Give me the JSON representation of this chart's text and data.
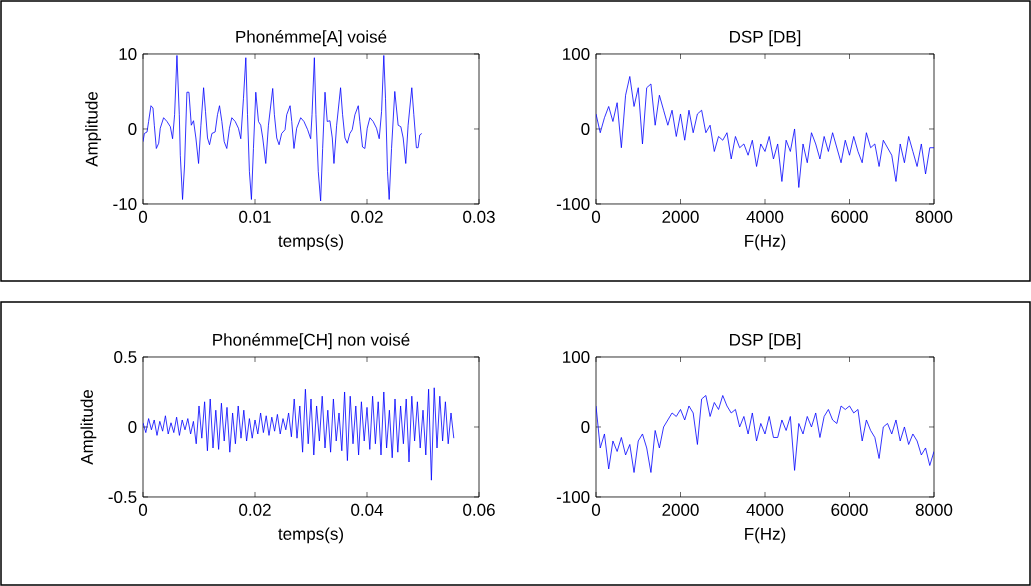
{
  "chart_data": [
    {
      "type": "line",
      "title": "Phonémme[A] voisé",
      "xlabel": "temps(s)",
      "ylabel": "Amplitude",
      "xlim": [
        0,
        0.03
      ],
      "ylim": [
        -10,
        10
      ],
      "xticks": [
        0,
        0.01,
        0.02,
        0.03
      ],
      "yticks": [
        -10,
        0,
        10
      ],
      "series": [
        {
          "color": "#0000ff",
          "x": [
            0,
            0.00012,
            0.00036,
            0.0005,
            0.00071,
            0.00089,
            0.00101,
            0.00119,
            0.0014,
            0.00154,
            0.00184,
            0.00214,
            0.00244,
            0.00264,
            0.00282,
            0.00303,
            0.00324,
            0.00333,
            0.00353,
            0.00371,
            0.00392,
            0.0041,
            0.00431,
            0.00451,
            0.00472,
            0.00496,
            0.00517,
            0.00541,
            0.00558,
            0.00576,
            0.00594,
            0.00615,
            0.00644,
            0.00665,
            0.00683,
            0.00704,
            0.00725,
            0.00748,
            0.00772,
            0.00793,
            0.00823,
            0.00852,
            0.00873,
            0.00897,
            0.00918,
            0.00933,
            0.0095,
            0.00968,
            0.00986,
            0.01007,
            0.01031,
            0.01051,
            0.01069,
            0.01096,
            0.0112,
            0.01158,
            0.01173,
            0.01194,
            0.01215,
            0.01238,
            0.01268,
            0.01283,
            0.01313,
            0.01328,
            0.01348,
            0.01372,
            0.01408,
            0.01437,
            0.0147,
            0.01497,
            0.01509,
            0.0153,
            0.01544,
            0.01565,
            0.01586,
            0.01604,
            0.01625,
            0.01645,
            0.01669,
            0.0169,
            0.01705,
            0.01729,
            0.01764,
            0.01782,
            0.01803,
            0.01824,
            0.01847,
            0.01868,
            0.01892,
            0.01922,
            0.01936,
            0.0196,
            0.01981,
            0.02002,
            0.02026,
            0.02055,
            0.02085,
            0.02109,
            0.0213,
            0.0215,
            0.02165,
            0.02183,
            0.02198,
            0.02219,
            0.02248,
            0.02278,
            0.02302,
            0.02323,
            0.02346,
            0.02367,
            0.024,
            0.02418,
            0.02441,
            0.02456,
            0.02471,
            0.02489
          ],
          "values": [
            -1.7,
            -0.6,
            -0.4,
            1.0,
            3.1,
            2.8,
            0.5,
            -2.6,
            -1.9,
            0.1,
            1.5,
            1.0,
            0.3,
            -1.3,
            1.9,
            9.8,
            1.9,
            -3.5,
            -9.4,
            -4.8,
            4.9,
            4.9,
            0.5,
            1.1,
            -1.2,
            -4.6,
            0.5,
            5.5,
            2.3,
            -1.2,
            -2.1,
            -0.6,
            -0.4,
            1.9,
            3.1,
            1.0,
            -1.7,
            -2.6,
            0.1,
            1.5,
            1.0,
            0.1,
            -1.3,
            4.1,
            9.5,
            1.9,
            -5.7,
            -9.4,
            -2.6,
            4.9,
            1.0,
            0.5,
            -1.2,
            -4.6,
            0.5,
            5.4,
            1.9,
            -1.2,
            -2.1,
            -0.6,
            -0.1,
            1.9,
            3.1,
            1.0,
            -2.6,
            0.1,
            1.5,
            1.0,
            -0.1,
            -1.3,
            1.9,
            9.5,
            1.9,
            -5.7,
            -9.6,
            -2.6,
            4.9,
            1.0,
            1.1,
            -1.2,
            -4.6,
            0.5,
            5.5,
            1.9,
            -1.2,
            -1.9,
            -0.6,
            -0.1,
            1.9,
            3.1,
            1.0,
            -2.4,
            -2.6,
            0.1,
            1.5,
            1.0,
            0.1,
            -1.3,
            2.3,
            9.8,
            4.1,
            -5.7,
            -9.4,
            -2.6,
            5.0,
            0.5,
            0.3,
            -1.2,
            -4.6,
            0.5,
            5.5,
            1.9,
            -2.5,
            -2.5,
            -0.8,
            -0.6
          ]
        }
      ]
    },
    {
      "type": "line",
      "title": "DSP [DB]",
      "xlabel": "F(Hz)",
      "xlim": [
        0,
        8000
      ],
      "ylim": [
        -100,
        100
      ],
      "xticks": [
        0,
        2000,
        4000,
        6000,
        8000
      ],
      "yticks": [
        -100,
        0,
        100
      ],
      "series": [
        {
          "color": "#0000ff",
          "x": [
            0,
            100,
            200,
            300,
            400,
            500,
            600,
            700,
            800,
            900,
            1000,
            1100,
            1200,
            1300,
            1400,
            1500,
            1600,
            1700,
            1800,
            1900,
            2000,
            2100,
            2200,
            2300,
            2400,
            2500,
            2600,
            2700,
            2800,
            2900,
            3000,
            3100,
            3200,
            3300,
            3400,
            3500,
            3600,
            3700,
            3800,
            3900,
            4000,
            4100,
            4200,
            4300,
            4400,
            4500,
            4600,
            4700,
            4800,
            4900,
            5000,
            5100,
            5200,
            5300,
            5400,
            5500,
            5600,
            5700,
            5800,
            5900,
            6000,
            6100,
            6200,
            6300,
            6400,
            6500,
            6600,
            6700,
            6800,
            6900,
            7000,
            7100,
            7200,
            7300,
            7400,
            7500,
            7600,
            7700,
            7800,
            7900,
            8000
          ],
          "values": [
            20,
            -5,
            15,
            30,
            10,
            35,
            -25,
            45,
            70,
            30,
            55,
            -20,
            55,
            60,
            5,
            45,
            25,
            5,
            25,
            -10,
            20,
            -15,
            25,
            -5,
            20,
            25,
            -5,
            5,
            -30,
            -10,
            -15,
            -5,
            -40,
            -10,
            -25,
            -20,
            -35,
            -15,
            -50,
            -20,
            -30,
            -10,
            -40,
            -20,
            -70,
            -15,
            -30,
            0,
            -78,
            -20,
            -45,
            -5,
            -20,
            -40,
            -10,
            -30,
            -5,
            -25,
            -45,
            -15,
            -35,
            -10,
            -30,
            -45,
            -5,
            -25,
            -20,
            -50,
            -15,
            -25,
            -35,
            -70,
            -20,
            -45,
            -10,
            -30,
            -50,
            -20,
            -60,
            -25,
            -25
          ]
        }
      ]
    },
    {
      "type": "line",
      "title": "Phonémme[CH] non voisé",
      "xlabel": "temps(s)",
      "ylabel": "Amplitude",
      "xlim": [
        0,
        0.06
      ],
      "ylim": [
        -0.5,
        0.5
      ],
      "xticks": [
        0,
        0.02,
        0.04,
        0.06
      ],
      "yticks": [
        -0.5,
        0,
        0.5
      ],
      "series": [
        {
          "color": "#0000ff",
          "x": [
            0,
            0.0005,
            0.001,
            0.0015,
            0.002,
            0.0025,
            0.003,
            0.0035,
            0.004,
            0.0045,
            0.005,
            0.0055,
            0.006,
            0.0065,
            0.007,
            0.0075,
            0.008,
            0.0085,
            0.009,
            0.0095,
            0.01,
            0.0105,
            0.011,
            0.0115,
            0.012,
            0.0125,
            0.013,
            0.0135,
            0.014,
            0.0145,
            0.015,
            0.0155,
            0.016,
            0.0165,
            0.017,
            0.0175,
            0.018,
            0.0185,
            0.019,
            0.0195,
            0.02,
            0.0205,
            0.021,
            0.0215,
            0.022,
            0.0225,
            0.023,
            0.0235,
            0.024,
            0.0245,
            0.025,
            0.0255,
            0.026,
            0.0265,
            0.027,
            0.0275,
            0.028,
            0.0285,
            0.029,
            0.0295,
            0.03,
            0.0305,
            0.031,
            0.0315,
            0.032,
            0.0325,
            0.033,
            0.0335,
            0.034,
            0.0345,
            0.035,
            0.0355,
            0.036,
            0.0365,
            0.037,
            0.0375,
            0.038,
            0.0385,
            0.039,
            0.0395,
            0.04,
            0.0405,
            0.041,
            0.0415,
            0.042,
            0.0425,
            0.043,
            0.0435,
            0.044,
            0.0445,
            0.045,
            0.0455,
            0.046,
            0.0465,
            0.047,
            0.0475,
            0.048,
            0.0485,
            0.049,
            0.0495,
            0.05,
            0.0505,
            0.051,
            0.0515,
            0.052,
            0.0525,
            0.053,
            0.0535,
            0.054,
            0.0545,
            0.055,
            0.0555
          ],
          "values": [
            0.03,
            -0.04,
            0.06,
            -0.02,
            0.05,
            -0.06,
            0.04,
            -0.03,
            0.08,
            -0.05,
            0.03,
            -0.04,
            0.07,
            -0.06,
            0.05,
            -0.02,
            0.06,
            -0.05,
            0.04,
            -0.12,
            0.15,
            -0.08,
            0.18,
            -0.17,
            0.2,
            -0.15,
            0.12,
            -0.16,
            0.17,
            -0.1,
            0.14,
            -0.18,
            0.1,
            -0.12,
            0.15,
            -0.08,
            0.12,
            -0.1,
            0.06,
            -0.08,
            0.05,
            -0.05,
            0.1,
            -0.04,
            0.08,
            -0.06,
            0.07,
            -0.03,
            0.09,
            -0.05,
            0.06,
            -0.02,
            0.1,
            -0.07,
            0.2,
            -0.08,
            0.15,
            -0.18,
            0.27,
            -0.12,
            0.2,
            -0.2,
            0.15,
            -0.1,
            0.22,
            -0.15,
            0.12,
            -0.18,
            0.2,
            -0.1,
            0.1,
            -0.17,
            0.25,
            -0.24,
            0.22,
            -0.12,
            0.15,
            -0.2,
            0.18,
            -0.1,
            0.14,
            -0.16,
            0.22,
            -0.12,
            0.18,
            -0.2,
            0.25,
            -0.15,
            0.12,
            -0.22,
            0.2,
            -0.18,
            0.15,
            -0.12,
            0.2,
            -0.25,
            0.22,
            -0.1,
            0.18,
            -0.15,
            0.12,
            -0.2,
            0.27,
            -0.38,
            0.28,
            -0.15,
            0.22,
            -0.1,
            0.18,
            -0.12,
            0.1,
            -0.08
          ]
        }
      ]
    },
    {
      "type": "line",
      "title": "DSP [DB]",
      "xlabel": "F(Hz)",
      "xlim": [
        0,
        8000
      ],
      "ylim": [
        -100,
        100
      ],
      "xticks": [
        0,
        2000,
        4000,
        6000,
        8000
      ],
      "yticks": [
        -100,
        0,
        100
      ],
      "series": [
        {
          "color": "#0000ff",
          "x": [
            0,
            100,
            200,
            300,
            400,
            500,
            600,
            700,
            800,
            900,
            1000,
            1100,
            1200,
            1300,
            1400,
            1500,
            1600,
            1700,
            1800,
            1900,
            2000,
            2100,
            2200,
            2300,
            2400,
            2500,
            2600,
            2700,
            2800,
            2900,
            3000,
            3100,
            3200,
            3300,
            3400,
            3500,
            3600,
            3700,
            3800,
            3900,
            4000,
            4100,
            4200,
            4300,
            4400,
            4500,
            4600,
            4700,
            4800,
            4900,
            5000,
            5100,
            5200,
            5300,
            5400,
            5500,
            5600,
            5700,
            5800,
            5900,
            6000,
            6100,
            6200,
            6300,
            6400,
            6500,
            6600,
            6700,
            6800,
            6900,
            7000,
            7100,
            7200,
            7300,
            7400,
            7500,
            7600,
            7700,
            7800,
            7900,
            8000
          ],
          "values": [
            30,
            -30,
            -10,
            -60,
            -20,
            -35,
            -15,
            -40,
            -25,
            -65,
            -20,
            -10,
            -30,
            -65,
            -5,
            -30,
            0,
            10,
            20,
            15,
            25,
            10,
            30,
            20,
            -25,
            40,
            45,
            15,
            35,
            25,
            45,
            30,
            20,
            25,
            0,
            15,
            -10,
            20,
            -20,
            5,
            -10,
            15,
            -15,
            -15,
            10,
            -5,
            15,
            -62,
            5,
            -10,
            15,
            0,
            20,
            -15,
            15,
            25,
            10,
            5,
            30,
            25,
            30,
            20,
            25,
            -20,
            10,
            -5,
            -15,
            -45,
            0,
            5,
            -10,
            10,
            -20,
            0,
            -25,
            -10,
            -20,
            -40,
            -30,
            -55,
            -35
          ]
        }
      ]
    }
  ]
}
